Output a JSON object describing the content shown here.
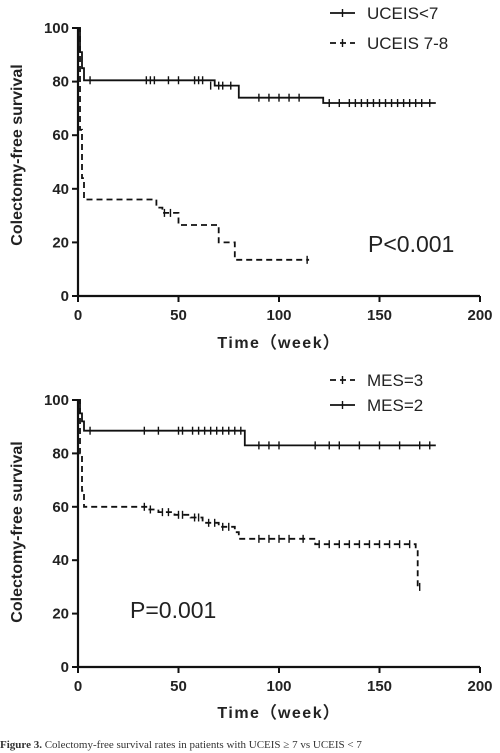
{
  "chart_data": [
    {
      "type": "line",
      "title": "",
      "xlabel": "Time（week）",
      "ylabel": "Colectomy-free survival",
      "xlim": [
        0,
        200
      ],
      "ylim": [
        0,
        100
      ],
      "xticks": [
        "0",
        "50",
        "100",
        "150",
        "200"
      ],
      "yticks": [
        "0",
        "20",
        "40",
        "60",
        "80",
        "100"
      ],
      "legend_position": "top-right",
      "annotation": "P<0.001",
      "series": [
        {
          "name": "UCEIS<7",
          "style": "solid",
          "x": [
            0,
            1,
            1,
            2,
            2,
            3,
            3,
            68,
            68,
            80,
            80,
            122,
            122,
            178
          ],
          "y": [
            100,
            100,
            91,
            91,
            85,
            85,
            80.5,
            80.5,
            78.5,
            78.5,
            74,
            74,
            72,
            72
          ],
          "censored_x": [
            6,
            34,
            36,
            38,
            45,
            50,
            58,
            60,
            62,
            66,
            70,
            72,
            76,
            90,
            95,
            100,
            105,
            110,
            125,
            130,
            135,
            138,
            141,
            144,
            147,
            150,
            153,
            156,
            159,
            162,
            165,
            168,
            171,
            175
          ],
          "censored_y": [
            80.5,
            80.5,
            80.5,
            80.5,
            80.5,
            80.5,
            80.5,
            80.5,
            80.5,
            78.5,
            78.5,
            78.5,
            78.5,
            74,
            74,
            74,
            74,
            74,
            72,
            72,
            72,
            72,
            72,
            72,
            72,
            72,
            72,
            72,
            72,
            72,
            72,
            72,
            72,
            72
          ]
        },
        {
          "name": "UCEIS 7-8",
          "style": "dashed",
          "x": [
            0,
            1,
            1,
            2,
            2,
            3,
            3,
            39,
            39,
            42,
            42,
            50,
            50,
            70,
            70,
            78,
            78,
            115
          ],
          "y": [
            100,
            100,
            62,
            62,
            44,
            44,
            36,
            36,
            33,
            33,
            31,
            31,
            26.5,
            26.5,
            20,
            20,
            13.5,
            13.5
          ],
          "censored_x": [
            43,
            46,
            114
          ],
          "censored_y": [
            31,
            31,
            13.5
          ]
        }
      ]
    },
    {
      "type": "line",
      "title": "",
      "xlabel": "Time（week）",
      "ylabel": "Colectomy-free survival",
      "xlim": [
        0,
        200
      ],
      "ylim": [
        0,
        100
      ],
      "xticks": [
        "0",
        "50",
        "100",
        "150",
        "200"
      ],
      "yticks": [
        "0",
        "20",
        "40",
        "60",
        "80",
        "100"
      ],
      "legend_position": "top-right",
      "annotation": "P=0.001",
      "series": [
        {
          "name": "MES=3",
          "style": "dashed",
          "x": [
            0,
            1,
            1,
            2,
            2,
            3,
            3,
            35,
            35,
            40,
            40,
            48,
            48,
            56,
            56,
            62,
            62,
            70,
            70,
            78,
            78,
            80,
            80,
            118,
            118,
            168,
            168,
            169,
            169,
            170
          ],
          "y": [
            100,
            100,
            80,
            80,
            66,
            66,
            60,
            60,
            59,
            59,
            58,
            58,
            57,
            57,
            56,
            56,
            54,
            54,
            52.5,
            52.5,
            50.5,
            50.5,
            48,
            48,
            46,
            46,
            44,
            44,
            30,
            30
          ],
          "censored_x": [
            33,
            36,
            42,
            45,
            50,
            52,
            58,
            60,
            65,
            68,
            72,
            75,
            90,
            95,
            100,
            105,
            112,
            120,
            125,
            130,
            135,
            140,
            145,
            150,
            155,
            160,
            165,
            170
          ],
          "censored_y": [
            60,
            59,
            58,
            58,
            57,
            57,
            56,
            56,
            54,
            54,
            52.5,
            52.5,
            48,
            48,
            48,
            48,
            48,
            46,
            46,
            46,
            46,
            46,
            46,
            46,
            46,
            46,
            46,
            30
          ]
        },
        {
          "name": "MES=2",
          "style": "solid",
          "x": [
            0,
            1,
            1,
            2,
            2,
            3,
            3,
            83,
            83,
            178
          ],
          "y": [
            100,
            100,
            95,
            95,
            92,
            92,
            88.5,
            88.5,
            83,
            83
          ],
          "censored_x": [
            6,
            33,
            40,
            50,
            52,
            57,
            60,
            63,
            66,
            69,
            72,
            75,
            78,
            81,
            90,
            95,
            100,
            118,
            125,
            130,
            140,
            150,
            160,
            170,
            175
          ],
          "censored_y": [
            88.5,
            88.5,
            88.5,
            88.5,
            88.5,
            88.5,
            88.5,
            88.5,
            88.5,
            88.5,
            88.5,
            88.5,
            88.5,
            88.5,
            83,
            83,
            83,
            83,
            83,
            83,
            83,
            83,
            83,
            83,
            83
          ]
        }
      ]
    }
  ],
  "caption": {
    "label": "Figure 3.",
    "text": "Colectomy-free survival rates in patients with UCEIS ≥ 7 vs UCEIS < 7"
  }
}
